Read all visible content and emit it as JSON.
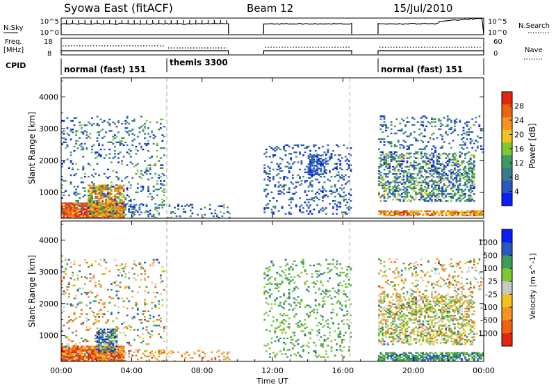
{
  "header": {
    "title": "Syowa East (fitACF)",
    "beam": "Beam 12",
    "date": "15/Jul/2010"
  },
  "aux_panels": {
    "nsky_label": "N.Sky",
    "nsky_ticks": [
      "10^5",
      "10^0"
    ],
    "nsearch_label": "N.Search",
    "nsearch_ticks": [
      "10^5",
      "10^0"
    ],
    "freq_label_1": "Freq.",
    "freq_label_2": "[MHz]",
    "freq_ticks": [
      "18",
      "8"
    ],
    "nave_label": "Nave",
    "nave_ticks": [
      "60",
      "0"
    ],
    "cpid_label": "CPID",
    "modes": [
      {
        "label": "normal (fast) 151",
        "start_hour": 0
      },
      {
        "label": "themis 3300",
        "start_hour": 6
      },
      {
        "label": "normal (fast) 151",
        "start_hour": 18
      }
    ]
  },
  "chart_data": {
    "type": "heatmap",
    "x_axis": {
      "label": "Time UT",
      "range": [
        0,
        24
      ],
      "ticks": [
        {
          "value": 0,
          "label": "00:00"
        },
        {
          "value": 4,
          "label": "04:00"
        },
        {
          "value": 8,
          "label": "08:00"
        },
        {
          "value": 12,
          "label": "12:00"
        },
        {
          "value": 16,
          "label": "16:00"
        },
        {
          "value": 20,
          "label": "20:00"
        },
        {
          "value": 24,
          "label": "00:00"
        }
      ]
    },
    "y_axis": {
      "label": "Slant Range [km]",
      "range": [
        180,
        4600
      ],
      "ticks": [
        1000,
        2000,
        3000,
        4000
      ]
    },
    "mode_boundaries_hours": [
      6.0,
      16.4
    ],
    "data_gaps_hours": [
      [
        9.5,
        11.5
      ],
      [
        16.5,
        18.0
      ]
    ],
    "panels": [
      {
        "name": "power",
        "colorbar_label": "Power [dB]",
        "colorbar_ticks": [
          "4",
          "8",
          "12",
          "16",
          "20",
          "24",
          "28"
        ],
        "colorbar_range": [
          0,
          32
        ],
        "colors": [
          "#0a1ef5",
          "#2a58c0",
          "#3a7a8a",
          "#3f9a5e",
          "#7ec832",
          "#f3c31a",
          "#f4951f",
          "#ee6212",
          "#e3240f"
        ],
        "regions": [
          {
            "t": [
              0.0,
              3.6
            ],
            "r": [
              180,
              650
            ],
            "level": [
              0.7,
              1.0
            ],
            "density": 0.9
          },
          {
            "t": [
              1.5,
              3.6
            ],
            "r": [
              250,
              1200
            ],
            "level": [
              0.4,
              0.9
            ],
            "density": 0.7
          },
          {
            "t": [
              0.0,
              5.8
            ],
            "r": [
              300,
              3400
            ],
            "level": [
              0.05,
              0.5
            ],
            "density": 0.12
          },
          {
            "t": [
              3.5,
              9.5
            ],
            "r": [
              180,
              600
            ],
            "level": [
              0.05,
              0.5
            ],
            "density": 0.15
          },
          {
            "t": [
              11.5,
              16.4
            ],
            "r": [
              300,
              2500
            ],
            "level": [
              0.05,
              0.35
            ],
            "density": 0.18
          },
          {
            "t": [
              14.0,
              15.0
            ],
            "r": [
              1500,
              2200
            ],
            "level": [
              0.05,
              0.3
            ],
            "density": 0.5
          },
          {
            "t": [
              18.0,
              24.0
            ],
            "r": [
              250,
              420
            ],
            "level": [
              0.5,
              0.95
            ],
            "density": 0.7
          },
          {
            "t": [
              18.0,
              23.5
            ],
            "r": [
              700,
              2200
            ],
            "level": [
              0.05,
              0.6
            ],
            "density": 0.45
          },
          {
            "t": [
              18.0,
              24.0
            ],
            "r": [
              2200,
              3400
            ],
            "level": [
              0.05,
              0.45
            ],
            "density": 0.15
          }
        ]
      },
      {
        "name": "velocity",
        "colorbar_label": "Velocity [m s^-1]",
        "colorbar_ticks": [
          "1000",
          "500",
          "100",
          "25",
          "-25",
          "-100",
          "-500",
          "-1000"
        ],
        "colorbar_range": [
          -1200,
          1200
        ],
        "colors": [
          "#e3240f",
          "#ee6212",
          "#f4951f",
          "#f3c31a",
          "#c8c8c8",
          "#7ec832",
          "#3f9a5e",
          "#2a58c0",
          "#0a1ef5"
        ],
        "regions": [
          {
            "t": [
              0.0,
              3.6
            ],
            "r": [
              180,
              650
            ],
            "level": [
              0.0,
              0.35
            ],
            "density": 0.9
          },
          {
            "t": [
              2.0,
              3.2
            ],
            "r": [
              450,
              1200
            ],
            "level": [
              0.55,
              1.0
            ],
            "density": 0.6
          },
          {
            "t": [
              0.0,
              5.8
            ],
            "r": [
              300,
              3400
            ],
            "level": [
              0.1,
              0.9
            ],
            "density": 0.12
          },
          {
            "t": [
              3.5,
              9.5
            ],
            "r": [
              180,
              500
            ],
            "level": [
              0.1,
              0.5
            ],
            "density": 0.2
          },
          {
            "t": [
              11.5,
              16.4
            ],
            "r": [
              300,
              3400
            ],
            "level": [
              0.55,
              0.8
            ],
            "density": 0.15
          },
          {
            "t": [
              18.0,
              24.0
            ],
            "r": [
              200,
              450
            ],
            "level": [
              0.6,
              0.85
            ],
            "density": 0.7
          },
          {
            "t": [
              18.0,
              23.5
            ],
            "r": [
              700,
              2300
            ],
            "level": [
              0.2,
              0.8
            ],
            "density": 0.45
          },
          {
            "t": [
              18.0,
              24.0
            ],
            "r": [
              2300,
              3400
            ],
            "level": [
              0.1,
              0.8
            ],
            "density": 0.15
          }
        ]
      }
    ]
  }
}
